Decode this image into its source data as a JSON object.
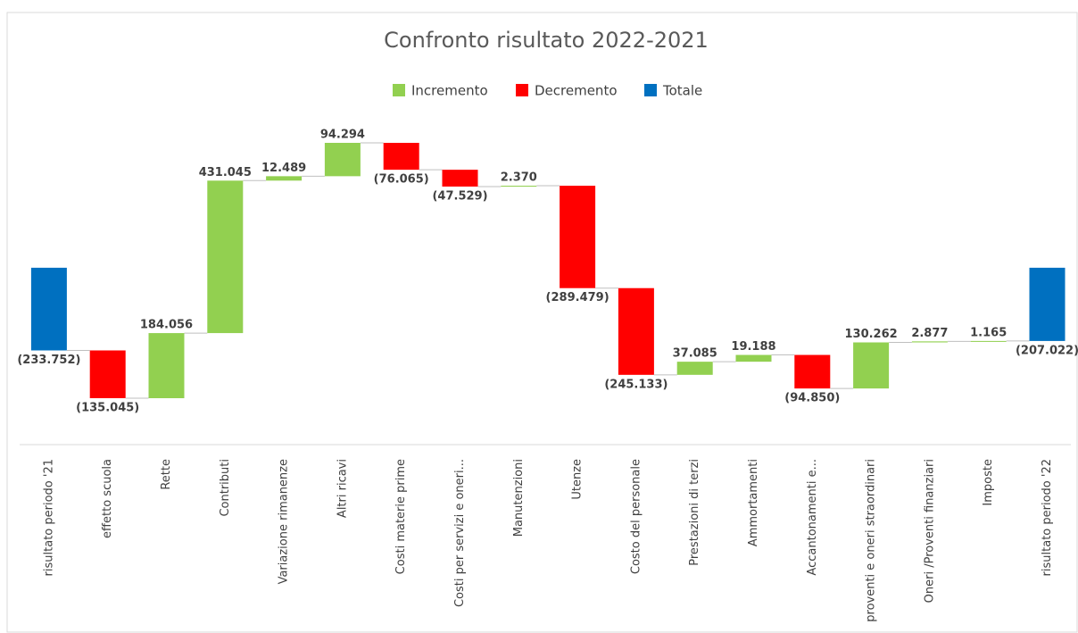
{
  "chart_data": {
    "type": "waterfall",
    "title": "Confronto risultato 2022-2021",
    "categories": [
      "risultato periodo  '21",
      "effetto scuola",
      "Rette",
      "Contributi",
      "Variazione rimanenze",
      "Altri ricavi",
      "Costi materie prime",
      "Costi per servizi e oneri...",
      "Manutenzioni",
      "Utenze",
      "Costo del personale",
      "Prestazioni di terzi",
      "Ammortamenti",
      "Accantonamenti e...",
      "proventi e oneri straordinari",
      "Oneri /Proventi finanziari",
      "Imposte",
      "risultato periodo '22"
    ],
    "values": [
      -233752,
      -135045,
      184056,
      431045,
      12489,
      94294,
      -76065,
      -47529,
      2370,
      -289479,
      -245133,
      37085,
      19188,
      -94850,
      130262,
      2877,
      1165,
      -207022
    ],
    "value_labels": [
      "(233.752)",
      "(135.045)",
      "184.056",
      "431.045",
      "12.489",
      "94.294",
      "(76.065)",
      "(47.529)",
      "2.370",
      "(289.479)",
      "(245.133)",
      "37.085",
      "19.188",
      "(94.850)",
      "130.262",
      "2.877",
      "1.165",
      "(207.022)"
    ],
    "total_indices": [
      0,
      17
    ],
    "legend": [
      {
        "name": "Incremento",
        "color": "#92d050"
      },
      {
        "name": "Decremento",
        "color": "#ff0000"
      },
      {
        "name": "Totale",
        "color": "#0070c0"
      }
    ]
  }
}
